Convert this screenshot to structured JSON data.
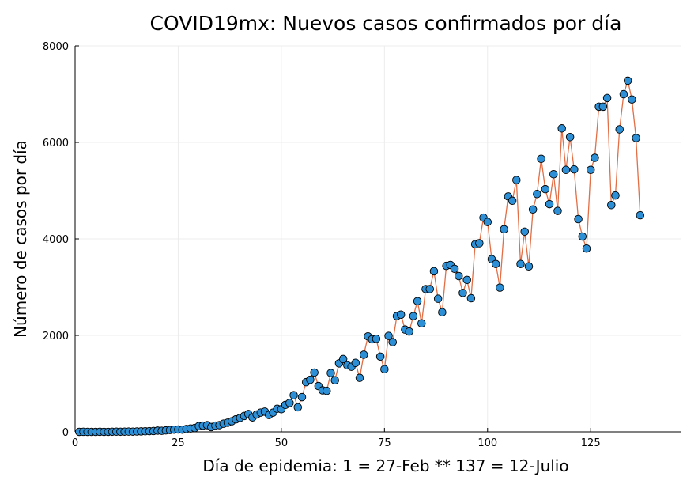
{
  "chart_data": {
    "type": "line",
    "title": "COVID19mx: Nuevos casos confirmados por día",
    "xlabel": "Día de epidemia: 1 = 27-Feb ** 137 = 12-Julio",
    "ylabel": "Número de casos por día",
    "xlim": [
      0,
      147
    ],
    "ylim": [
      0,
      8000
    ],
    "xticks": [
      0,
      25,
      50,
      75,
      100,
      125
    ],
    "yticks": [
      0,
      2000,
      4000,
      6000,
      8000
    ],
    "grid": true,
    "legend": "none",
    "colors": {
      "line": "#e26f46",
      "marker": "#2d8fd5",
      "marker_edge": "#000000",
      "grid": "#ececec",
      "axis": "#000000"
    },
    "series": [
      {
        "x": [
          1,
          2,
          3,
          4,
          5,
          6,
          7,
          8,
          9,
          10,
          11,
          12,
          13,
          14,
          15,
          16,
          17,
          18,
          19,
          20,
          21,
          22,
          23,
          24,
          25,
          26,
          27,
          28,
          29,
          30,
          31,
          32,
          33,
          34,
          35,
          36,
          37,
          38,
          39,
          40,
          41,
          42,
          43,
          44,
          45,
          46,
          47,
          48,
          49,
          50,
          51,
          52,
          53,
          54,
          55,
          56,
          57,
          58,
          59,
          60,
          61,
          62,
          63,
          64,
          65,
          66,
          67,
          68,
          69,
          70,
          71,
          72,
          73,
          74,
          75,
          76,
          77,
          78,
          79,
          80,
          81,
          82,
          83,
          84,
          85,
          86,
          87,
          88,
          89,
          90,
          91,
          92,
          93,
          94,
          95,
          96,
          97,
          98,
          99,
          100,
          101,
          102,
          103,
          104,
          105,
          106,
          107,
          108,
          109,
          110,
          111,
          112,
          113,
          114,
          115,
          116,
          117,
          118,
          119,
          120,
          121,
          122,
          123,
          124,
          125,
          126,
          127,
          128,
          129,
          130,
          131,
          132,
          133,
          134,
          135,
          136,
          137
        ],
        "y": [
          1,
          2,
          1,
          0,
          0,
          2,
          1,
          1,
          3,
          4,
          3,
          5,
          6,
          5,
          8,
          10,
          12,
          15,
          18,
          26,
          22,
          30,
          38,
          45,
          50,
          45,
          60,
          70,
          80,
          120,
          130,
          140,
          100,
          130,
          140,
          170,
          190,
          220,
          260,
          290,
          330,
          370,
          300,
          360,
          400,
          420,
          350,
          400,
          480,
          470,
          560,
          600,
          760,
          510,
          720,
          1030,
          1080,
          1230,
          950,
          860,
          850,
          1220,
          1070,
          1420,
          1510,
          1380,
          1350,
          1430,
          1120,
          1600,
          1980,
          1920,
          1930,
          1560,
          1300,
          1990,
          1860,
          2400,
          2430,
          2120,
          2080,
          2400,
          2710,
          2250,
          2960,
          2960,
          3330,
          2760,
          2480,
          3440,
          3460,
          3380,
          3230,
          2880,
          3150,
          2770,
          3890,
          3910,
          4440,
          4350,
          3580,
          3480,
          2990,
          4200,
          4880,
          4790,
          5220,
          3480,
          4150,
          3430,
          4610,
          4930,
          5660,
          5030,
          4720,
          5340,
          4580,
          6290,
          5430,
          6110,
          5440,
          4410,
          4050,
          3800,
          5430,
          5680,
          6740,
          6740,
          6920,
          4700,
          4900,
          6270,
          7000,
          7280,
          6890,
          6090,
          4490
        ]
      }
    ]
  }
}
